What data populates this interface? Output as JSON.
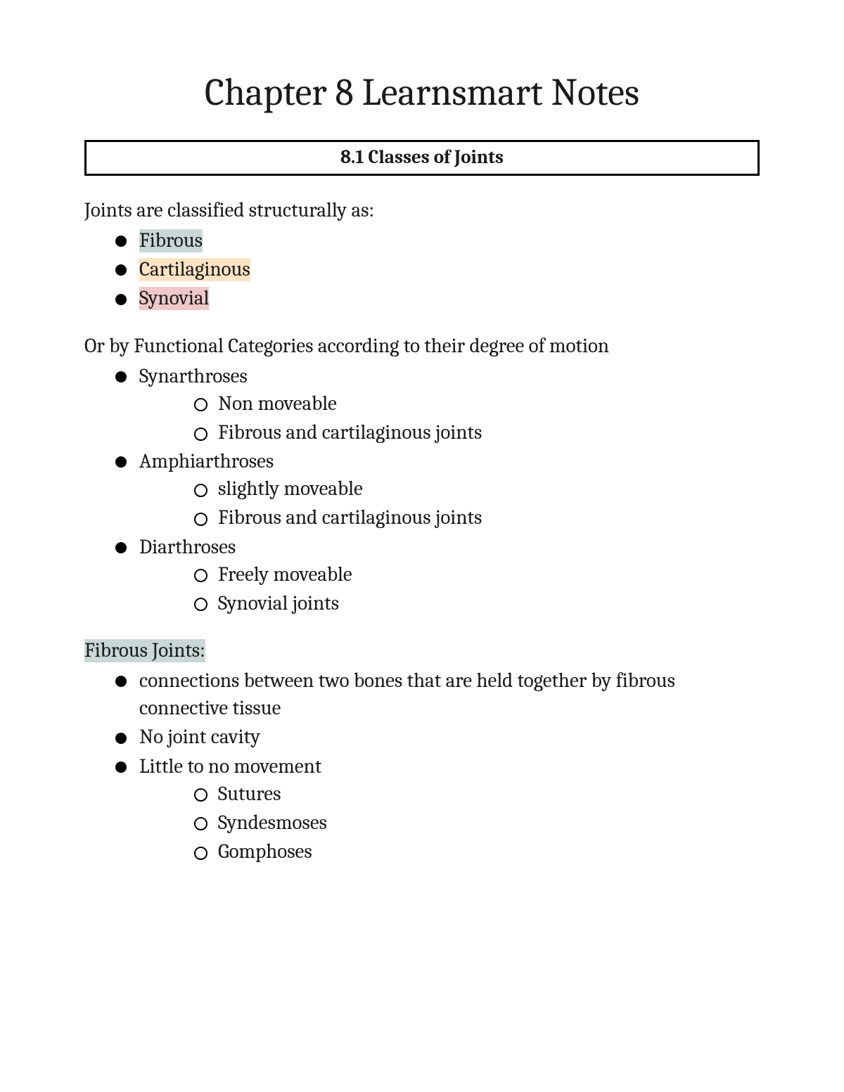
{
  "title": "Chapter 8 Learnsmart Notes",
  "section_header": "8.1 Classes of Joints",
  "highlight_colors": {
    "fibrous": "#c9d8d6",
    "cartilaginous": "#fce3c4",
    "synovial": "#f0c7c9"
  },
  "structural_intro": "Joints are classified structurally as:",
  "structural_list": {
    "item1": "Fibrous",
    "item2": "Cartilaginous",
    "item3": "Synovial"
  },
  "functional_intro": "Or by Functional Categories according to their degree of motion",
  "functional": {
    "cat1": {
      "name": "Synarthroses",
      "sub1": "Non moveable",
      "sub2": "Fibrous and cartilaginous joints"
    },
    "cat2": {
      "name": "Amphiarthroses",
      "sub1": "slightly moveable",
      "sub2": "Fibrous and cartilaginous joints"
    },
    "cat3": {
      "name": "Diarthroses",
      "sub1": "Freely moveable",
      "sub2": "Synovial joints"
    }
  },
  "fibrous_heading": "Fibrous Joints:",
  "fibrous": {
    "b1": "connections between two bones that are held together by fibrous connective tissue",
    "b2": "No joint cavity",
    "b3": "Little to no movement",
    "sub1": "Sutures",
    "sub2": "Syndesmoses",
    "sub3": "Gomphoses"
  }
}
